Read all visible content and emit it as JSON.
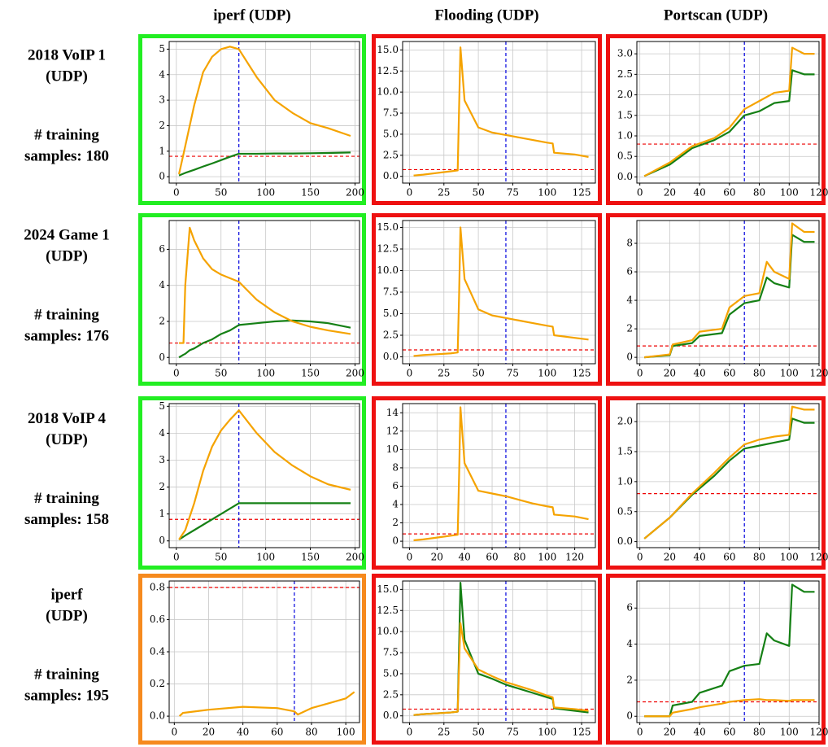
{
  "column_headers": [
    "iperf (UDP)",
    "Flooding (UDP)",
    "Portscan (UDP)"
  ],
  "row_labels": [
    [
      "2018 VoIP 1",
      "(UDP)",
      "# training",
      "samples: 180"
    ],
    [
      "2024 Game 1",
      "(UDP)",
      "# training",
      "samples: 176"
    ],
    [
      "2018 VoIP 4",
      "(UDP)",
      "# training",
      "samples: 158"
    ],
    [
      "iperf",
      "(UDP)",
      "# training",
      "samples: 195"
    ]
  ],
  "chart_data": [
    {
      "type": "line",
      "frame_color": "#22ee22",
      "threshold": 0.8,
      "vline": 70,
      "grid": true,
      "xlim": [
        -8,
        205
      ],
      "xticks": [
        0,
        50,
        100,
        150,
        200
      ],
      "ylim": [
        -0.25,
        5.3
      ],
      "yticks": [
        0,
        1,
        2,
        3,
        4,
        5
      ],
      "x": [
        3,
        10,
        20,
        30,
        40,
        50,
        60,
        70,
        90,
        110,
        130,
        150,
        170,
        195
      ],
      "series": [
        {
          "color": "#158015",
          "values": [
            0.05,
            0.15,
            0.27,
            0.4,
            0.52,
            0.65,
            0.78,
            0.9,
            0.9,
            0.91,
            0.91,
            0.92,
            0.93,
            0.95
          ]
        },
        {
          "color": "#f5a300",
          "values": [
            0.1,
            1.2,
            2.8,
            4.1,
            4.7,
            5.0,
            5.1,
            5.0,
            3.9,
            3.0,
            2.5,
            2.1,
            1.9,
            1.6
          ]
        }
      ]
    },
    {
      "type": "line",
      "frame_color": "#ee1111",
      "threshold": 0.8,
      "vline": 70,
      "grid": true,
      "xlim": [
        -5,
        135
      ],
      "xticks": [
        0,
        25,
        50,
        75,
        100,
        125
      ],
      "ylim": [
        -0.8,
        16
      ],
      "yticks": [
        {
          "value": 0,
          "label": "0.0"
        },
        {
          "value": 2.5,
          "label": "2.5"
        },
        {
          "value": 5,
          "label": "5.0"
        },
        {
          "value": 7.5,
          "label": "7.5"
        },
        {
          "value": 10,
          "label": "10.0"
        },
        {
          "value": 12.5,
          "label": "12.5"
        },
        {
          "value": 15,
          "label": "15.0"
        }
      ],
      "x": [
        3,
        10,
        20,
        30,
        35,
        36,
        37,
        40,
        50,
        60,
        70,
        80,
        90,
        100,
        104,
        105,
        120,
        130
      ],
      "series": [
        {
          "color": "#f5a300",
          "values": [
            0.1,
            0.2,
            0.4,
            0.6,
            0.7,
            8,
            15.3,
            9,
            5.8,
            5.2,
            4.9,
            4.6,
            4.3,
            4.0,
            3.9,
            2.8,
            2.6,
            2.3
          ]
        }
      ]
    },
    {
      "type": "line",
      "frame_color": "#ee1111",
      "threshold": 0.8,
      "vline": 70,
      "grid": true,
      "xlim": [
        -2,
        120
      ],
      "xticks": [
        0,
        20,
        40,
        60,
        80,
        100,
        120
      ],
      "ylim": [
        -0.15,
        3.3
      ],
      "yticks": [
        {
          "value": 0,
          "label": "0.0"
        },
        {
          "value": 0.5,
          "label": "0.5"
        },
        {
          "value": 1,
          "label": "1.0"
        },
        {
          "value": 1.5,
          "label": "1.5"
        },
        {
          "value": 2,
          "label": "2.0"
        },
        {
          "value": 2.5,
          "label": "2.5"
        },
        {
          "value": 3,
          "label": "3.0"
        }
      ],
      "x": [
        3,
        20,
        35,
        50,
        60,
        70,
        80,
        90,
        100,
        102,
        110,
        117
      ],
      "series": [
        {
          "color": "#158015",
          "values": [
            0.02,
            0.3,
            0.7,
            0.9,
            1.1,
            1.5,
            1.6,
            1.8,
            1.85,
            2.6,
            2.5,
            2.5
          ]
        },
        {
          "color": "#f5a300",
          "values": [
            0.02,
            0.35,
            0.75,
            0.95,
            1.2,
            1.65,
            1.85,
            2.05,
            2.1,
            3.15,
            3.0,
            3.0
          ]
        }
      ]
    },
    {
      "type": "line",
      "frame_color": "#22ee22",
      "threshold": 0.8,
      "vline": 70,
      "grid": true,
      "xlim": [
        -8,
        205
      ],
      "xticks": [
        0,
        50,
        100,
        150,
        200
      ],
      "ylim": [
        -0.35,
        7.6
      ],
      "yticks": [
        0,
        2,
        4,
        6
      ],
      "x": [
        3,
        8,
        10,
        15,
        20,
        30,
        40,
        50,
        60,
        70,
        90,
        110,
        130,
        150,
        170,
        195
      ],
      "series": [
        {
          "color": "#158015",
          "values": [
            0,
            0.15,
            0.2,
            0.4,
            0.5,
            0.8,
            1.0,
            1.3,
            1.5,
            1.8,
            1.9,
            2.0,
            2.05,
            2.0,
            1.9,
            1.65
          ]
        },
        {
          "color": "#f5a300",
          "values": [
            0.8,
            0.8,
            4,
            7.2,
            6.5,
            5.5,
            4.9,
            4.6,
            4.4,
            4.2,
            3.2,
            2.5,
            2.0,
            1.7,
            1.5,
            1.3
          ]
        }
      ]
    },
    {
      "type": "line",
      "frame_color": "#ee1111",
      "threshold": 0.8,
      "vline": 70,
      "grid": true,
      "xlim": [
        -5,
        135
      ],
      "xticks": [
        0,
        25,
        50,
        75,
        100,
        125
      ],
      "ylim": [
        -0.8,
        15.8
      ],
      "yticks": [
        {
          "value": 0,
          "label": "0.0"
        },
        {
          "value": 2.5,
          "label": "2.5"
        },
        {
          "value": 5,
          "label": "5.0"
        },
        {
          "value": 7.5,
          "label": "7.5"
        },
        {
          "value": 10,
          "label": "10.0"
        },
        {
          "value": 12.5,
          "label": "12.5"
        },
        {
          "value": 15,
          "label": "15.0"
        }
      ],
      "x": [
        3,
        10,
        20,
        30,
        35,
        36,
        37,
        40,
        50,
        60,
        70,
        80,
        90,
        100,
        104,
        105,
        120,
        130
      ],
      "series": [
        {
          "color": "#f5a300",
          "values": [
            0.1,
            0.2,
            0.3,
            0.4,
            0.5,
            7,
            15,
            9,
            5.5,
            4.8,
            4.5,
            4.2,
            3.9,
            3.6,
            3.5,
            2.5,
            2.2,
            2.0
          ]
        }
      ]
    },
    {
      "type": "line",
      "frame_color": "#ee1111",
      "threshold": 0.8,
      "vline": 70,
      "grid": true,
      "xlim": [
        -2,
        120
      ],
      "xticks": [
        0,
        20,
        40,
        60,
        80,
        100,
        120
      ],
      "ylim": [
        -0.45,
        9.6
      ],
      "yticks": [
        0,
        2,
        4,
        6,
        8
      ],
      "x": [
        3,
        20,
        22,
        35,
        40,
        55,
        60,
        70,
        80,
        85,
        90,
        100,
        102,
        110,
        117
      ],
      "series": [
        {
          "color": "#158015",
          "values": [
            0,
            0.15,
            0.8,
            1.0,
            1.5,
            1.7,
            3.0,
            3.8,
            4.0,
            5.6,
            5.2,
            4.9,
            8.6,
            8.1,
            8.1
          ]
        },
        {
          "color": "#f5a300",
          "values": [
            0,
            0.2,
            0.9,
            1.2,
            1.8,
            2.0,
            3.5,
            4.3,
            4.5,
            6.7,
            6.0,
            5.5,
            9.4,
            8.8,
            8.8
          ]
        }
      ]
    },
    {
      "type": "line",
      "frame_color": "#22ee22",
      "threshold": 0.8,
      "vline": 70,
      "grid": true,
      "xlim": [
        -8,
        205
      ],
      "xticks": [
        0,
        50,
        100,
        150,
        200
      ],
      "ylim": [
        -0.25,
        5.1
      ],
      "yticks": [
        0,
        1,
        2,
        3,
        4,
        5
      ],
      "x": [
        3,
        10,
        20,
        30,
        40,
        50,
        60,
        70,
        90,
        110,
        130,
        150,
        170,
        195
      ],
      "series": [
        {
          "color": "#158015",
          "values": [
            0.05,
            0.2,
            0.4,
            0.6,
            0.8,
            1.0,
            1.2,
            1.4,
            1.4,
            1.4,
            1.4,
            1.4,
            1.4,
            1.4
          ]
        },
        {
          "color": "#f5a300",
          "values": [
            0.05,
            0.4,
            1.4,
            2.6,
            3.5,
            4.1,
            4.5,
            4.85,
            4.0,
            3.3,
            2.8,
            2.4,
            2.1,
            1.9
          ]
        }
      ]
    },
    {
      "type": "line",
      "frame_color": "#ee1111",
      "threshold": 0.8,
      "vline": 70,
      "grid": true,
      "xlim": [
        -5,
        135
      ],
      "xticks": [
        0,
        20,
        40,
        60,
        80,
        100,
        120
      ],
      "ylim": [
        -0.7,
        15
      ],
      "yticks": [
        0,
        2,
        4,
        6,
        8,
        10,
        12,
        14
      ],
      "x": [
        3,
        10,
        20,
        30,
        35,
        36,
        37,
        40,
        50,
        60,
        70,
        80,
        90,
        100,
        104,
        105,
        120,
        130
      ],
      "series": [
        {
          "color": "#f5a300",
          "values": [
            0.1,
            0.2,
            0.4,
            0.6,
            0.7,
            7,
            14.6,
            8.5,
            5.5,
            5.2,
            4.9,
            4.5,
            4.1,
            3.8,
            3.7,
            2.9,
            2.7,
            2.4
          ]
        }
      ]
    },
    {
      "type": "line",
      "frame_color": "#ee1111",
      "threshold": 0.8,
      "vline": 70,
      "grid": true,
      "xlim": [
        -2,
        120
      ],
      "xticks": [
        0,
        20,
        40,
        60,
        80,
        100,
        120
      ],
      "ylim": [
        -0.1,
        2.3
      ],
      "yticks": [
        {
          "value": 0,
          "label": "0.0"
        },
        {
          "value": 0.5,
          "label": "0.5"
        },
        {
          "value": 1,
          "label": "1.0"
        },
        {
          "value": 1.5,
          "label": "1.5"
        },
        {
          "value": 2,
          "label": "2.0"
        }
      ],
      "x": [
        3,
        20,
        35,
        50,
        60,
        70,
        80,
        90,
        100,
        102,
        110,
        117
      ],
      "series": [
        {
          "color": "#158015",
          "values": [
            0.05,
            0.4,
            0.78,
            1.1,
            1.35,
            1.55,
            1.6,
            1.65,
            1.7,
            2.05,
            1.98,
            1.98
          ]
        },
        {
          "color": "#f5a300",
          "values": [
            0.05,
            0.4,
            0.8,
            1.15,
            1.4,
            1.62,
            1.7,
            1.75,
            1.78,
            2.25,
            2.2,
            2.2
          ]
        }
      ]
    },
    {
      "type": "line",
      "frame_color": "#f68a1e",
      "threshold": 0.8,
      "vline": 70,
      "grid": true,
      "xlim": [
        -3,
        108
      ],
      "xticks": [
        0,
        20,
        40,
        60,
        80,
        100
      ],
      "ylim": [
        -0.04,
        0.84
      ],
      "yticks": [
        {
          "value": 0,
          "label": "0.0"
        },
        {
          "value": 0.2,
          "label": "0.2"
        },
        {
          "value": 0.4,
          "label": "0.4"
        },
        {
          "value": 0.6,
          "label": "0.6"
        },
        {
          "value": 0.8,
          "label": "0.8"
        }
      ],
      "x": [
        3,
        5,
        20,
        40,
        60,
        70,
        72,
        80,
        90,
        100,
        105
      ],
      "series": [
        {
          "color": "#f5a300",
          "values": [
            0.0,
            0.02,
            0.04,
            0.058,
            0.05,
            0.03,
            0.01,
            0.05,
            0.08,
            0.11,
            0.15
          ]
        }
      ]
    },
    {
      "type": "line",
      "frame_color": "#ee1111",
      "threshold": 0.8,
      "vline": 70,
      "grid": true,
      "xlim": [
        -5,
        135
      ],
      "xticks": [
        0,
        25,
        50,
        75,
        100,
        125
      ],
      "ylim": [
        -0.8,
        16
      ],
      "yticks": [
        {
          "value": 0,
          "label": "0.0"
        },
        {
          "value": 2.5,
          "label": "2.5"
        },
        {
          "value": 5,
          "label": "5.0"
        },
        {
          "value": 7.5,
          "label": "7.5"
        },
        {
          "value": 10,
          "label": "10.0"
        },
        {
          "value": 12.5,
          "label": "12.5"
        },
        {
          "value": 15,
          "label": "15.0"
        }
      ],
      "x": [
        3,
        10,
        20,
        30,
        35,
        36,
        37,
        40,
        50,
        60,
        70,
        80,
        90,
        100,
        104,
        105,
        120,
        130
      ],
      "series": [
        {
          "color": "#158015",
          "values": [
            0.1,
            0.2,
            0.3,
            0.4,
            0.5,
            8,
            15.8,
            9,
            5,
            4.4,
            3.7,
            3.2,
            2.7,
            2.2,
            2.0,
            0.9,
            0.6,
            0.4
          ]
        },
        {
          "color": "#f5a300",
          "values": [
            0.1,
            0.2,
            0.3,
            0.4,
            0.5,
            6,
            11,
            8,
            5.5,
            4.7,
            4.0,
            3.5,
            3.0,
            2.4,
            2.2,
            1.0,
            0.8,
            0.6
          ]
        }
      ]
    },
    {
      "type": "line",
      "frame_color": "#ee1111",
      "threshold": 0.8,
      "vline": 70,
      "grid": true,
      "xlim": [
        -2,
        120
      ],
      "xticks": [
        0,
        20,
        40,
        60,
        80,
        100,
        120
      ],
      "ylim": [
        -0.35,
        7.5
      ],
      "yticks": [
        0,
        2,
        4,
        6
      ],
      "x": [
        3,
        20,
        22,
        35,
        40,
        55,
        60,
        70,
        80,
        85,
        90,
        100,
        102,
        110,
        117
      ],
      "series": [
        {
          "color": "#158015",
          "values": [
            0,
            0,
            0.6,
            0.8,
            1.3,
            1.7,
            2.5,
            2.8,
            2.9,
            4.6,
            4.2,
            3.9,
            7.3,
            6.9,
            6.9
          ]
        },
        {
          "color": "#f5a300",
          "values": [
            0,
            0,
            0.2,
            0.4,
            0.5,
            0.7,
            0.8,
            0.9,
            0.95,
            0.9,
            0.9,
            0.85,
            0.9,
            0.9,
            0.9
          ]
        }
      ]
    }
  ]
}
